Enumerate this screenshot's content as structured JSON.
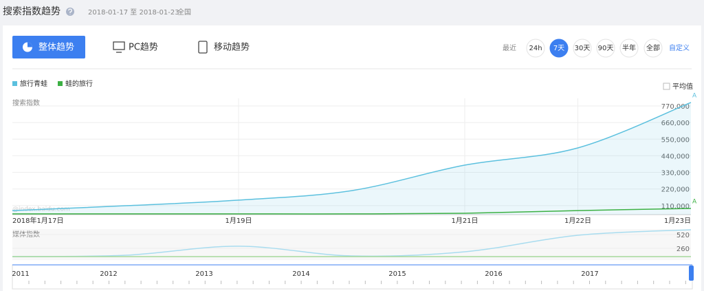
{
  "header": {
    "title": "搜索指数趋势",
    "date_range": "2018-01-17 至 2018-01-23",
    "region": "全国"
  },
  "tabs": [
    "整体趋势",
    "PC趋势",
    "移动趋势"
  ],
  "range": {
    "label": "最近",
    "options": [
      "24h",
      "7天",
      "30天",
      "90天",
      "半年",
      "全部"
    ],
    "custom": "自定义"
  },
  "average_label": "平均值",
  "chart_data": [
    {
      "type": "line",
      "y_label": "搜索指数",
      "watermark": "@index.baidu.com",
      "legend": "top-left",
      "grid": true,
      "categories": [
        "2018年1月17日",
        null,
        "1月19日",
        null,
        "1月21日",
        "1月22日",
        "1月23日"
      ],
      "series": [
        {
          "name": "旅行青蛙",
          "color": "#5bc0de",
          "flag": "A",
          "values": [
            77000,
            109000,
            146000,
            209000,
            378000,
            492000,
            793000
          ]
        },
        {
          "name": "蛙的旅行",
          "color": "#3cb043",
          "flag": "A",
          "values": [
            55000,
            55000,
            55000,
            55000,
            59000,
            77000,
            91000
          ]
        }
      ],
      "ylim": [
        50000,
        820000
      ],
      "yticks": [
        {
          "value": 110000,
          "label": "110,000"
        },
        {
          "value": 220000,
          "label": "220,000"
        },
        {
          "value": 330000,
          "label": "330,000"
        },
        {
          "value": 440000,
          "label": "440,000"
        },
        {
          "value": 550000,
          "label": "550,000"
        },
        {
          "value": 660000,
          "label": "660,000"
        },
        {
          "value": 770000,
          "label": "770,000"
        }
      ]
    },
    {
      "type": "line",
      "y_label": "媒体指数",
      "series": [
        {
          "color": "#a8dcef",
          "values": [
            104,
            130,
            300,
            117,
            195,
            507,
            611
          ]
        },
        {
          "color": "#a6d99b",
          "values": [
            104,
            104,
            104,
            104,
            104,
            104,
            104
          ]
        }
      ],
      "ylim": [
        0,
        624
      ],
      "yticks": [
        260,
        520
      ]
    }
  ],
  "timeline": {
    "years": [
      2011,
      2012,
      2013,
      2014,
      2015,
      2016,
      2017
    ]
  }
}
